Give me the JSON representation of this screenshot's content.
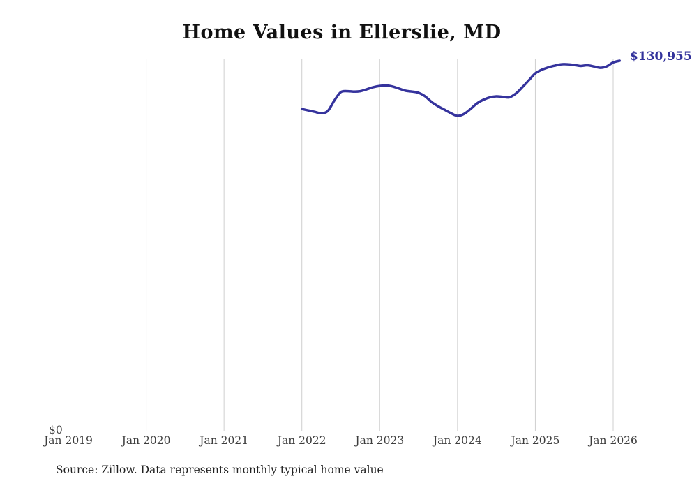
{
  "page": {
    "background_color": "#ffffff"
  },
  "colors": {
    "line": "#35339d",
    "end_label": "#31319b",
    "gridline": "#cfcfcf",
    "title_text": "#111111",
    "axis_text": "#3d3d3d",
    "source_text": "#222222"
  },
  "source_note": "Source: Zillow. Data represents monthly typical home value",
  "chart_data": {
    "type": "line",
    "title": "Home Values in Ellerslie, MD",
    "series_name": "Monthly typical home value (USD)",
    "xlabel": "",
    "ylabel": "",
    "x_axis_start": "Jan 2019",
    "x_axis_end": "Jan 2026",
    "x_axis_ticks": [
      "Jan 2019",
      "Jan 2020",
      "Jan 2021",
      "Jan 2022",
      "Jan 2023",
      "Jan 2024",
      "Jan 2025",
      "Jan 2026"
    ],
    "y_axis_ticks": [
      "$0"
    ],
    "ylim": [
      0,
      131500
    ],
    "grid": "vertical-only",
    "legend": "none",
    "series_start_offset_months": 36,
    "end_point_label": "$130,955",
    "end_value": 130955,
    "x": [
      "Jan 2022",
      "Feb 2022",
      "Mar 2022",
      "Apr 2022",
      "May 2022",
      "Jun 2022",
      "Jul 2022",
      "Aug 2022",
      "Sep 2022",
      "Oct 2022",
      "Nov 2022",
      "Dec 2022",
      "Jan 2023",
      "Feb 2023",
      "Mar 2023",
      "Apr 2023",
      "May 2023",
      "Jun 2023",
      "Jul 2023",
      "Aug 2023",
      "Sep 2023",
      "Oct 2023",
      "Nov 2023",
      "Dec 2023",
      "Jan 2024",
      "Feb 2024",
      "Mar 2024",
      "Apr 2024",
      "May 2024",
      "Jun 2024",
      "Jul 2024",
      "Aug 2024",
      "Sep 2024",
      "Oct 2024",
      "Nov 2024",
      "Dec 2024",
      "Jan 2025",
      "Feb 2025",
      "Mar 2025",
      "Apr 2025",
      "May 2025",
      "Jun 2025",
      "Jul 2025",
      "Aug 2025",
      "Sep 2025",
      "Oct 2025",
      "Nov 2025",
      "Dec 2025",
      "Jan 2026",
      "Feb 2026"
    ],
    "values": [
      113800,
      113300,
      112800,
      112300,
      113100,
      116800,
      119800,
      120150,
      120000,
      120150,
      120800,
      121550,
      122000,
      122150,
      121800,
      121050,
      120300,
      120000,
      119550,
      118300,
      116300,
      114800,
      113550,
      112300,
      111350,
      112050,
      113800,
      115800,
      117100,
      117950,
      118300,
      118100,
      117950,
      119300,
      121550,
      124000,
      126500,
      127750,
      128600,
      129200,
      129700,
      129700,
      129450,
      129100,
      129350,
      128950,
      128450,
      128950,
      130350,
      130955
    ]
  }
}
